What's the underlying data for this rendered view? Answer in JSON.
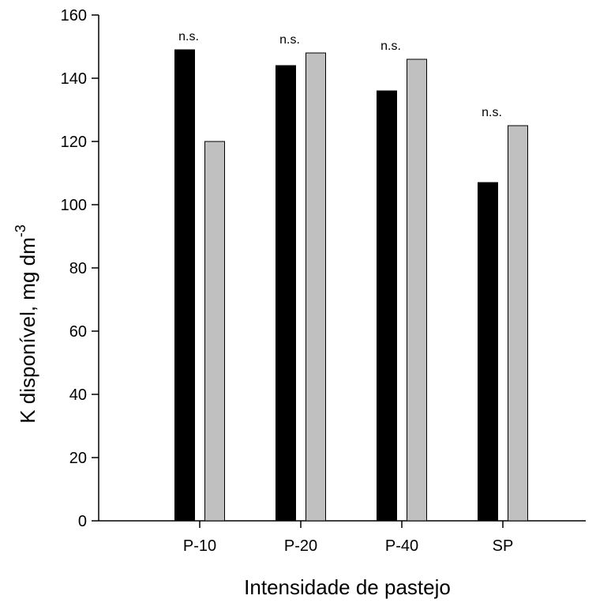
{
  "chart_data": {
    "type": "bar",
    "title": "",
    "xlabel": "Intensidade de pastejo",
    "ylabel": {
      "main": "K disponível, mg dm",
      "superscript": "-3"
    },
    "categories": [
      "P-10",
      "P-20",
      "P-40",
      "SP"
    ],
    "series": [
      {
        "color": "#000000",
        "values": [
          149,
          144,
          136,
          107
        ]
      },
      {
        "color": "#c0c0c0",
        "values": [
          120,
          148,
          146,
          125
        ]
      }
    ],
    "annotations": [
      "n.s.",
      "n.s.",
      "n.s.",
      "n.s."
    ],
    "ylim": [
      0,
      160
    ],
    "yticks": [
      0,
      20,
      40,
      60,
      80,
      100,
      120,
      140,
      160
    ],
    "grid": false,
    "legend": "none"
  }
}
